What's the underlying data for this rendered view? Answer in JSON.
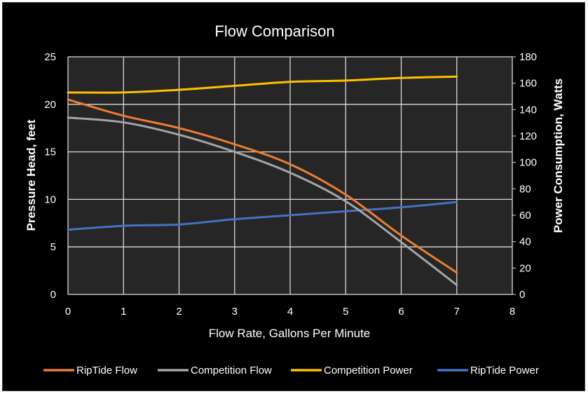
{
  "chart_data": {
    "type": "line",
    "title": "Flow Comparison",
    "xlabel": "Flow Rate, Gallons Per Minute",
    "ylabel_left": "Pressure Head, feet",
    "ylabel_right": "Power Consumption, Watts",
    "xlim": [
      0,
      8
    ],
    "ylim_left": [
      0,
      25
    ],
    "ylim_right": [
      0,
      180
    ],
    "x_ticks": [
      0,
      1,
      2,
      3,
      4,
      5,
      6,
      7,
      8
    ],
    "y_left_ticks": [
      0,
      5,
      10,
      15,
      20,
      25
    ],
    "y_right_ticks": [
      0,
      20,
      40,
      60,
      80,
      100,
      120,
      140,
      160,
      180
    ],
    "grid": true,
    "legend_position": "bottom",
    "series": [
      {
        "name": "RipTide Flow",
        "axis": "left",
        "color": "#ed7d31",
        "x": [
          0,
          1,
          2,
          3,
          4,
          5,
          6,
          7
        ],
        "y": [
          20.5,
          18.8,
          17.5,
          15.8,
          13.7,
          10.5,
          6.2,
          2.3
        ]
      },
      {
        "name": "Competition Flow",
        "axis": "left",
        "color": "#a5a5a5",
        "x": [
          0,
          1,
          2,
          3,
          4,
          5,
          6,
          7
        ],
        "y": [
          18.6,
          18.1,
          16.8,
          15.0,
          12.8,
          9.8,
          5.5,
          1.0
        ]
      },
      {
        "name": "Competition Power",
        "axis": "right",
        "color": "#ffc000",
        "x": [
          0,
          1,
          2,
          3,
          4,
          5,
          6,
          7
        ],
        "y": [
          153,
          153,
          155,
          158,
          161,
          162,
          164,
          165
        ]
      },
      {
        "name": "RipTide Power",
        "axis": "right",
        "color": "#4472c4",
        "x": [
          0,
          1,
          2,
          3,
          4,
          5,
          6,
          7
        ],
        "y": [
          49,
          52,
          53,
          57,
          60,
          63,
          66,
          70
        ]
      }
    ]
  }
}
